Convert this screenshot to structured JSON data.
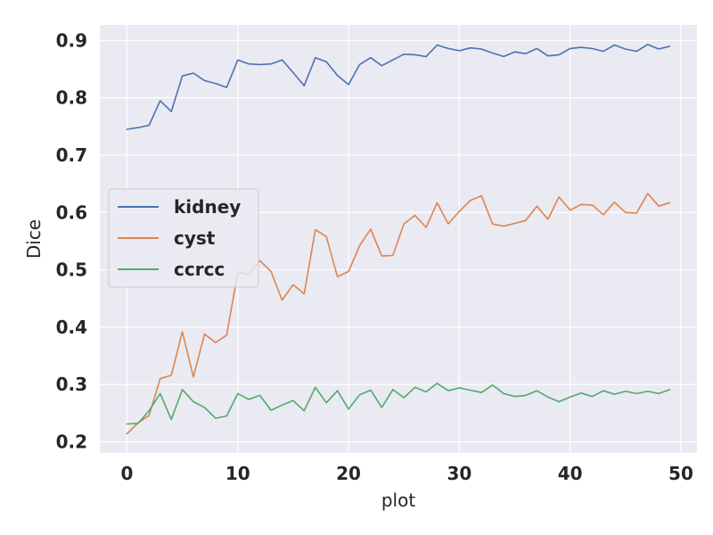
{
  "chart_data": {
    "type": "line",
    "xlabel": "plot",
    "ylabel": "Dice",
    "xlim": [
      -2.45,
      51.45
    ],
    "ylim": [
      0.1805,
      0.927
    ],
    "xticks": [
      "0",
      "10",
      "20",
      "30",
      "40",
      "50"
    ],
    "yticks": [
      "0.2",
      "0.3",
      "0.4",
      "0.5",
      "0.6",
      "0.7",
      "0.8",
      "0.9"
    ],
    "grid": true,
    "legend_position": "center-left",
    "x": [
      0,
      1,
      2,
      3,
      4,
      5,
      6,
      7,
      8,
      9,
      10,
      11,
      12,
      13,
      14,
      15,
      16,
      17,
      18,
      19,
      20,
      21,
      22,
      23,
      24,
      25,
      26,
      27,
      28,
      29,
      30,
      31,
      32,
      33,
      34,
      35,
      36,
      37,
      38,
      39,
      40,
      41,
      42,
      43,
      44,
      45,
      46,
      47,
      48,
      49
    ],
    "series": [
      {
        "name": "kidney",
        "color": "#4c72b0",
        "values": [
          0.745,
          0.748,
          0.752,
          0.795,
          0.776,
          0.838,
          0.843,
          0.83,
          0.825,
          0.818,
          0.866,
          0.859,
          0.858,
          0.859,
          0.866,
          0.844,
          0.821,
          0.87,
          0.863,
          0.839,
          0.823,
          0.858,
          0.87,
          0.856,
          0.866,
          0.876,
          0.875,
          0.872,
          0.892,
          0.886,
          0.882,
          0.887,
          0.885,
          0.878,
          0.872,
          0.88,
          0.877,
          0.886,
          0.873,
          0.875,
          0.886,
          0.888,
          0.886,
          0.881,
          0.892,
          0.885,
          0.881,
          0.893,
          0.885,
          0.89
        ]
      },
      {
        "name": "cyst",
        "color": "#dd8452",
        "values": [
          0.214,
          0.233,
          0.246,
          0.31,
          0.316,
          0.392,
          0.313,
          0.388,
          0.373,
          0.386,
          0.496,
          0.492,
          0.516,
          0.497,
          0.447,
          0.474,
          0.458,
          0.57,
          0.558,
          0.488,
          0.497,
          0.542,
          0.571,
          0.524,
          0.525,
          0.58,
          0.595,
          0.574,
          0.617,
          0.58,
          0.602,
          0.621,
          0.629,
          0.58,
          0.576,
          0.581,
          0.586,
          0.611,
          0.588,
          0.627,
          0.604,
          0.614,
          0.613,
          0.596,
          0.618,
          0.6,
          0.599,
          0.633,
          0.611,
          0.617
        ]
      },
      {
        "name": "ccrcc",
        "color": "#55a868",
        "values": [
          0.231,
          0.232,
          0.254,
          0.284,
          0.239,
          0.291,
          0.27,
          0.26,
          0.241,
          0.245,
          0.284,
          0.274,
          0.281,
          0.255,
          0.264,
          0.272,
          0.254,
          0.295,
          0.268,
          0.289,
          0.257,
          0.282,
          0.29,
          0.26,
          0.291,
          0.277,
          0.295,
          0.287,
          0.302,
          0.289,
          0.294,
          0.29,
          0.286,
          0.299,
          0.284,
          0.279,
          0.281,
          0.289,
          0.278,
          0.27,
          0.278,
          0.285,
          0.279,
          0.289,
          0.283,
          0.288,
          0.284,
          0.288,
          0.284,
          0.291
        ]
      }
    ]
  }
}
